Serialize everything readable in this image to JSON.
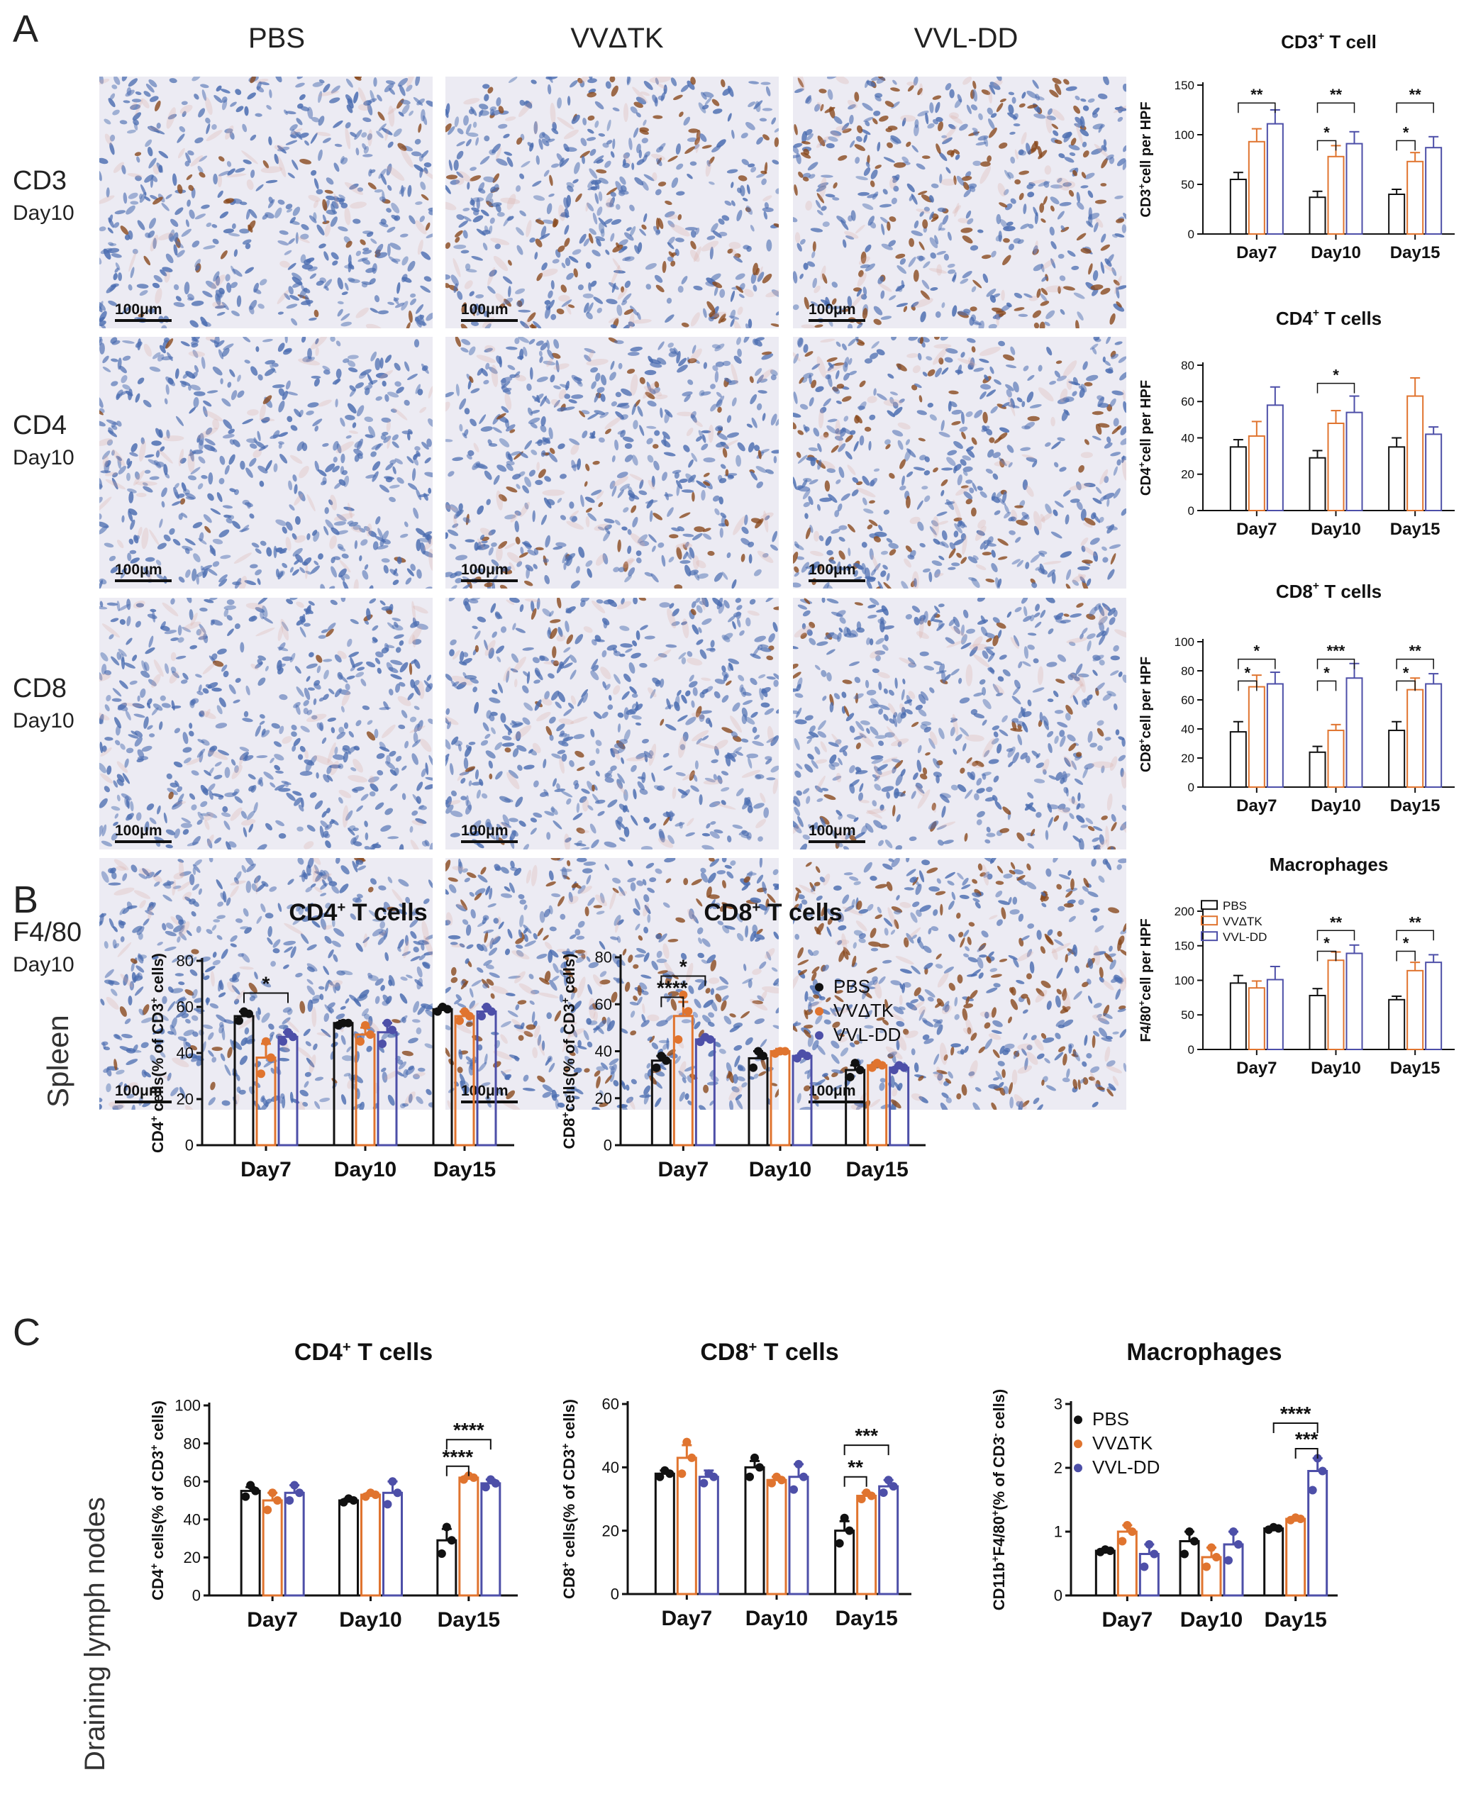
{
  "panels": {
    "A": "A",
    "B": "B",
    "C": "C"
  },
  "panelA": {
    "columns": [
      "PBS",
      "VVΔTK",
      "VVL-DD"
    ],
    "rows": [
      {
        "marker": "CD3",
        "day": "Day10",
        "stain": [
          0.22,
          0.55,
          0.75
        ]
      },
      {
        "marker": "CD4",
        "day": "Day10",
        "stain": [
          0.05,
          0.5,
          0.55
        ]
      },
      {
        "marker": "CD8",
        "day": "Day10",
        "stain": [
          0.03,
          0.18,
          0.22
        ]
      },
      {
        "marker": "F4/80",
        "day": "Day10",
        "stain": [
          0.12,
          0.7,
          0.92
        ]
      }
    ],
    "scale_bar": "100μm"
  },
  "side_labels": {
    "spleen": "Spleen",
    "dln": "Draining lymph nodes"
  },
  "colors": {
    "PBS": "#111111",
    "VVΔTK": "#e0742f",
    "VVL-DD": "#4d4fa8",
    "cell": "#4a6cb0",
    "brown": "#8a4a1e",
    "tissue": "#ecebf3"
  },
  "chart_data": [
    {
      "id": "A1",
      "type": "bar",
      "title": "CD3",
      "title_sup": "+",
      "title_rest": " T cell",
      "ylabel": "CD3",
      "ylabel_sup": "+",
      "ylabel_rest": "cell per HPF",
      "categories": [
        "Day7",
        "Day10",
        "Day15"
      ],
      "ylim": [
        0,
        150
      ],
      "yticks": [
        0,
        50,
        100,
        150
      ],
      "series": [
        {
          "name": "PBS",
          "values": [
            55,
            37,
            40
          ],
          "err": [
            7,
            6,
            5
          ]
        },
        {
          "name": "VVΔTK",
          "values": [
            93,
            78,
            73
          ],
          "err": [
            13,
            11,
            9
          ]
        },
        {
          "name": "VVL-DD",
          "values": [
            111,
            91,
            87
          ],
          "err": [
            14,
            12,
            11
          ]
        }
      ],
      "sig": [
        {
          "cat": 0,
          "from": 0,
          "to": 2,
          "label": "**",
          "y": 132
        },
        {
          "cat": 1,
          "from": 0,
          "to": 2,
          "label": "**",
          "y": 132
        },
        {
          "cat": 1,
          "from": 0,
          "to": 1,
          "label": "*",
          "y": 94
        },
        {
          "cat": 2,
          "from": 0,
          "to": 2,
          "label": "**",
          "y": 132
        },
        {
          "cat": 2,
          "from": 0,
          "to": 1,
          "label": "*",
          "y": 94
        }
      ]
    },
    {
      "id": "A2",
      "type": "bar",
      "title": "CD4",
      "title_sup": "+",
      "title_rest": " T cells",
      "ylabel": "CD4",
      "ylabel_sup": "+",
      "ylabel_rest": "cell per HPF",
      "categories": [
        "Day7",
        "Day10",
        "Day15"
      ],
      "ylim": [
        0,
        80
      ],
      "yticks": [
        0,
        20,
        40,
        60,
        80
      ],
      "series": [
        {
          "name": "PBS",
          "values": [
            35,
            29,
            35
          ],
          "err": [
            4,
            4,
            5
          ]
        },
        {
          "name": "VVΔTK",
          "values": [
            41,
            48,
            63
          ],
          "err": [
            8,
            7,
            10
          ]
        },
        {
          "name": "VVL-DD",
          "values": [
            58,
            54,
            42
          ],
          "err": [
            10,
            9,
            4
          ]
        }
      ],
      "sig": [
        {
          "cat": 1,
          "from": 0,
          "to": 2,
          "label": "*",
          "y": 70
        }
      ]
    },
    {
      "id": "A3",
      "type": "bar",
      "title": "CD8",
      "title_sup": "+",
      "title_rest": " T cells",
      "ylabel": "CD8",
      "ylabel_sup": "+",
      "ylabel_rest": "cell per HPF",
      "categories": [
        "Day7",
        "Day10",
        "Day15"
      ],
      "ylim": [
        0,
        100
      ],
      "yticks": [
        0,
        20,
        40,
        60,
        80,
        100
      ],
      "series": [
        {
          "name": "PBS",
          "values": [
            38,
            24,
            39
          ],
          "err": [
            7,
            4,
            6
          ]
        },
        {
          "name": "VVΔTK",
          "values": [
            69,
            39,
            67
          ],
          "err": [
            8,
            4,
            8
          ]
        },
        {
          "name": "VVL-DD",
          "values": [
            71,
            75,
            71
          ],
          "err": [
            8,
            10,
            7
          ]
        }
      ],
      "sig": [
        {
          "cat": 0,
          "from": 0,
          "to": 2,
          "label": "*",
          "y": 88
        },
        {
          "cat": 0,
          "from": 0,
          "to": 1,
          "label": "*",
          "y": 73
        },
        {
          "cat": 1,
          "from": 0,
          "to": 2,
          "label": "***",
          "y": 88
        },
        {
          "cat": 1,
          "from": 0,
          "to": 1,
          "label": "*",
          "y": 73
        },
        {
          "cat": 2,
          "from": 0,
          "to": 2,
          "label": "**",
          "y": 88
        },
        {
          "cat": 2,
          "from": 0,
          "to": 1,
          "label": "*",
          "y": 73
        }
      ]
    },
    {
      "id": "A4",
      "type": "bar",
      "title": "Macrophages",
      "title_sup": "",
      "title_rest": "",
      "ylabel": "F4/80",
      "ylabel_sup": "+",
      "ylabel_rest": "cell per HPF",
      "categories": [
        "Day7",
        "Day10",
        "Day15"
      ],
      "ylim": [
        0,
        200
      ],
      "yticks": [
        0,
        50,
        100,
        150,
        200
      ],
      "series": [
        {
          "name": "PBS",
          "values": [
            96,
            78,
            72
          ],
          "err": [
            11,
            10,
            5
          ]
        },
        {
          "name": "VVΔTK",
          "values": [
            89,
            129,
            114
          ],
          "err": [
            10,
            12,
            12
          ]
        },
        {
          "name": "VVL-DD",
          "values": [
            101,
            139,
            126
          ],
          "err": [
            19,
            12,
            11
          ]
        }
      ],
      "sig": [
        {
          "cat": 1,
          "from": 0,
          "to": 2,
          "label": "**",
          "y": 172
        },
        {
          "cat": 1,
          "from": 0,
          "to": 1,
          "label": "*",
          "y": 142
        },
        {
          "cat": 2,
          "from": 0,
          "to": 2,
          "label": "**",
          "y": 172
        },
        {
          "cat": 2,
          "from": 0,
          "to": 1,
          "label": "*",
          "y": 142
        }
      ],
      "legend": [
        "PBS",
        "VVΔTK",
        "VVL-DD"
      ]
    },
    {
      "id": "B1",
      "type": "bar",
      "title": "CD4",
      "title_sup": "+",
      "title_rest": " T cells",
      "ylabel": "CD4",
      "ylabel_sup": "+",
      "ylabel_rest": " cells(% of CD3",
      "ylabel_sup2": "+",
      "ylabel_rest2": " cells)",
      "categories": [
        "Day7",
        "Day10",
        "Day15"
      ],
      "ylim": [
        0,
        80
      ],
      "yticks": [
        0,
        20,
        40,
        60,
        80
      ],
      "series": [
        {
          "name": "PBS",
          "values": [
            56,
            53,
            59
          ],
          "err": [
            2,
            1,
            1
          ],
          "points": [
            [
              54,
              57,
              58
            ],
            [
              52,
              53,
              53
            ],
            [
              58,
              59,
              60
            ]
          ]
        },
        {
          "name": "VVΔTK",
          "values": [
            38,
            48,
            56
          ],
          "err": [
            6,
            3,
            2
          ],
          "points": [
            [
              31,
              38,
              45
            ],
            [
              45,
              48,
              52
            ],
            [
              54,
              56,
              58
            ]
          ]
        },
        {
          "name": "VVL-DD",
          "values": [
            47,
            49,
            58
          ],
          "err": [
            2,
            4,
            2
          ],
          "points": [
            [
              45,
              47,
              49
            ],
            [
              44,
              50,
              53
            ],
            [
              56,
              58,
              60
            ]
          ]
        }
      ],
      "sig": [
        {
          "cat": 0,
          "from": 0,
          "to": 2,
          "label": "*",
          "y": 66
        }
      ],
      "dots": true
    },
    {
      "id": "B2",
      "type": "bar",
      "title": "CD8",
      "title_sup": "+",
      "title_rest": " T cells",
      "ylabel": "CD8",
      "ylabel_sup": "+",
      "ylabel_rest": "cells(% of CD3",
      "ylabel_sup2": "+",
      "ylabel_rest2": " cells)",
      "categories": [
        "Day7",
        "Day10",
        "Day15"
      ],
      "ylim": [
        0,
        80
      ],
      "yticks": [
        0,
        20,
        40,
        60,
        80
      ],
      "series": [
        {
          "name": "PBS",
          "values": [
            36,
            37,
            32
          ],
          "err": [
            2,
            3,
            2
          ],
          "points": [
            [
              33,
              36,
              38
            ],
            [
              33,
              38,
              40
            ],
            [
              29,
              32,
              35
            ]
          ]
        },
        {
          "name": "VVΔTK",
          "values": [
            55,
            40,
            34
          ],
          "err": [
            6,
            1,
            1
          ],
          "points": [
            [
              45,
              57,
              64
            ],
            [
              39,
              40,
              40
            ],
            [
              33,
              34,
              35
            ]
          ]
        },
        {
          "name": "VVL-DD",
          "values": [
            45,
            38,
            33
          ],
          "err": [
            1,
            1,
            1
          ],
          "points": [
            [
              44,
              45,
              46
            ],
            [
              37,
              38,
              39
            ],
            [
              32,
              33,
              34
            ]
          ]
        }
      ],
      "sig": [
        {
          "cat": 0,
          "from": 0,
          "to": 2,
          "label": "*",
          "y": 72
        },
        {
          "cat": 0,
          "from": 0,
          "to": 1,
          "label": "****",
          "y": 63
        }
      ],
      "dots": true,
      "legend": [
        "PBS",
        "VVΔTK",
        "VVL-DD"
      ]
    },
    {
      "id": "C1",
      "type": "bar",
      "title": "CD4",
      "title_sup": "+",
      "title_rest": " T cells",
      "ylabel": "CD4",
      "ylabel_sup": "+",
      "ylabel_rest": " cells(% of CD3",
      "ylabel_sup2": "+",
      "ylabel_rest2": " cells)",
      "categories": [
        "Day7",
        "Day10",
        "Day15"
      ],
      "ylim": [
        0,
        100
      ],
      "yticks": [
        0,
        20,
        40,
        60,
        80,
        100
      ],
      "series": [
        {
          "name": "PBS",
          "values": [
            55,
            50,
            29
          ],
          "err": [
            2,
            1,
            6
          ],
          "points": [
            [
              52,
              55,
              58
            ],
            [
              49,
              50,
              51
            ],
            [
              22,
              29,
              36
            ]
          ]
        },
        {
          "name": "VVΔTK",
          "values": [
            50,
            53,
            62
          ],
          "err": [
            4,
            1,
            1
          ],
          "points": [
            [
              45,
              50,
              54
            ],
            [
              52,
              53,
              54
            ],
            [
              61,
              62,
              63
            ]
          ]
        },
        {
          "name": "VVL-DD",
          "values": [
            54,
            54,
            59
          ],
          "err": [
            4,
            6,
            2
          ],
          "points": [
            [
              50,
              54,
              58
            ],
            [
              48,
              54,
              60
            ],
            [
              57,
              59,
              61
            ]
          ]
        }
      ],
      "sig": [
        {
          "cat": 2,
          "from": 0,
          "to": 2,
          "label": "****",
          "y": 82
        },
        {
          "cat": 2,
          "from": 0,
          "to": 1,
          "label": "****",
          "y": 68
        }
      ],
      "dots": true
    },
    {
      "id": "C2",
      "type": "bar",
      "title": "CD8",
      "title_sup": "+",
      "title_rest": " T cells",
      "ylabel": "CD8",
      "ylabel_sup": "+",
      "ylabel_rest": " cells(% of CD3",
      "ylabel_sup2": "+",
      "ylabel_rest2": " cells)",
      "categories": [
        "Day7",
        "Day10",
        "Day15"
      ],
      "ylim": [
        0,
        60
      ],
      "yticks": [
        0,
        20,
        40,
        60
      ],
      "series": [
        {
          "name": "PBS",
          "values": [
            38,
            40,
            20
          ],
          "err": [
            1,
            2,
            3
          ],
          "points": [
            [
              37,
              38,
              39
            ],
            [
              37,
              40,
              43
            ],
            [
              16,
              20,
              24
            ]
          ]
        },
        {
          "name": "VVΔTK",
          "values": [
            43,
            36,
            31
          ],
          "err": [
            4,
            1,
            1
          ],
          "points": [
            [
              38,
              43,
              48
            ],
            [
              35,
              36,
              37
            ],
            [
              30,
              31,
              32
            ]
          ]
        },
        {
          "name": "VVL-DD",
          "values": [
            37,
            37,
            34
          ],
          "err": [
            2,
            4,
            2
          ],
          "points": [
            [
              35,
              37,
              38
            ],
            [
              33,
              37,
              41
            ],
            [
              32,
              34,
              36
            ]
          ]
        }
      ],
      "sig": [
        {
          "cat": 2,
          "from": 0,
          "to": 2,
          "label": "***",
          "y": 47
        },
        {
          "cat": 2,
          "from": 0,
          "to": 1,
          "label": "**",
          "y": 37
        }
      ],
      "dots": true
    },
    {
      "id": "C3",
      "type": "bar",
      "title": "Macrophages",
      "title_sup": "",
      "title_rest": "",
      "ylabel": "CD11b",
      "ylabel_sup": "+",
      "ylabel_rest": "F4/80",
      "ylabel_sup2": "+",
      "ylabel_rest2": "(% of CD3",
      "ylabel_sup3": "-",
      "ylabel_rest3": " cells)",
      "categories": [
        "Day7",
        "Day10",
        "Day15"
      ],
      "ylim": [
        0,
        3
      ],
      "yticks": [
        0,
        1,
        2,
        3
      ],
      "series": [
        {
          "name": "PBS",
          "values": [
            0.7,
            0.85,
            1.05
          ],
          "err": [
            0.02,
            0.15,
            0.02
          ],
          "points": [
            [
              0.68,
              0.7,
              0.72
            ],
            [
              0.65,
              0.85,
              1.0
            ],
            [
              1.03,
              1.05,
              1.07
            ]
          ]
        },
        {
          "name": "VVΔTK",
          "values": [
            1.0,
            0.6,
            1.2
          ],
          "err": [
            0.1,
            0.15,
            0.02
          ],
          "points": [
            [
              0.85,
              1.0,
              1.1
            ],
            [
              0.45,
              0.6,
              0.75
            ],
            [
              1.18,
              1.2,
              1.22
            ]
          ]
        },
        {
          "name": "VVL-DD",
          "values": [
            0.65,
            0.8,
            1.95
          ],
          "err": [
            0.15,
            0.2,
            0.2
          ],
          "points": [
            [
              0.45,
              0.65,
              0.8
            ],
            [
              0.55,
              0.8,
              1.0
            ],
            [
              1.65,
              1.95,
              2.15
            ]
          ]
        }
      ],
      "sig": [
        {
          "cat": 2,
          "from": 0,
          "to": 2,
          "label": "****",
          "y": 2.7
        },
        {
          "cat": 2,
          "from": 1,
          "to": 2,
          "label": "***",
          "y": 2.3
        }
      ],
      "dots": true,
      "legend": [
        "PBS",
        "VVΔTK",
        "VVL-DD"
      ]
    }
  ]
}
